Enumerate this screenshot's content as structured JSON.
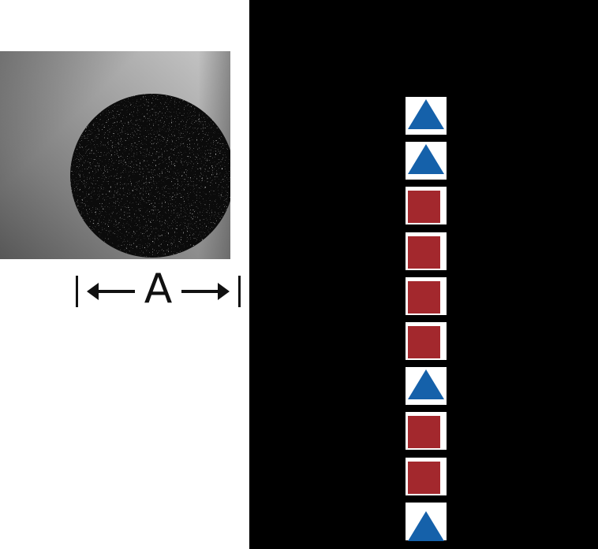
{
  "dimension": {
    "label": "A"
  },
  "colors": {
    "panel_black": "#000000",
    "cell_white": "#ffffff",
    "triangle_blue": "#1561aa",
    "square_red": "#a3282d",
    "annotation_ink": "#111111"
  },
  "strip": {
    "cells": [
      "triangle",
      "triangle",
      "square",
      "square",
      "square",
      "square",
      "triangle",
      "square",
      "square",
      "triangle"
    ]
  },
  "icons": {
    "triangle": "▲",
    "square": "■",
    "left_arrow": "←",
    "right_arrow": "→"
  }
}
